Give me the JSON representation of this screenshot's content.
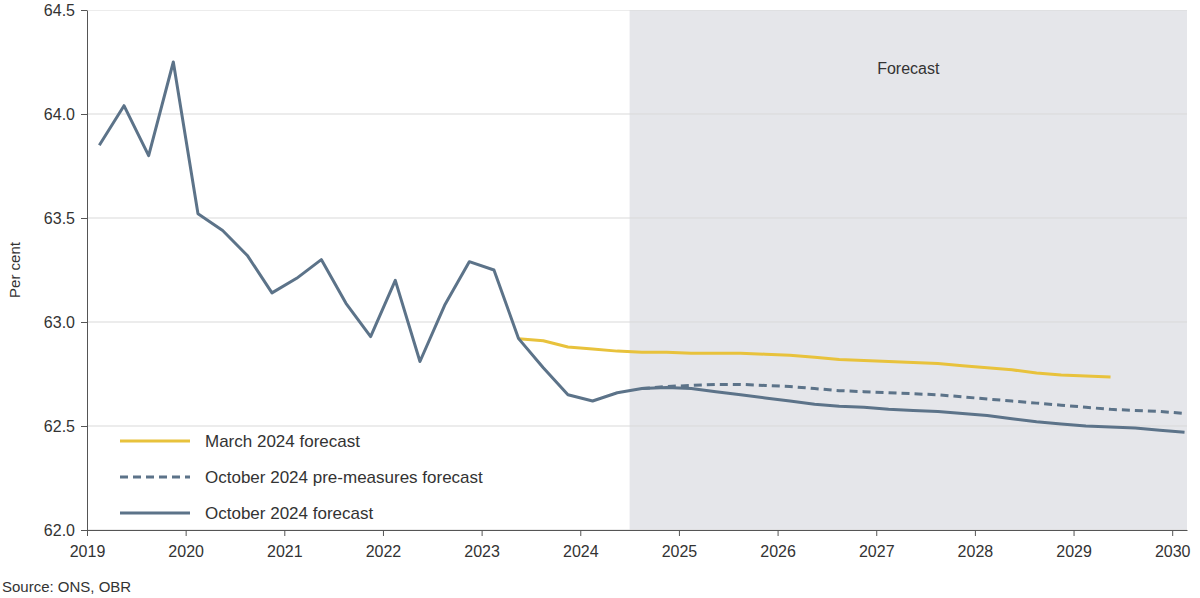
{
  "chart_data": {
    "type": "line",
    "y_label": "Per cent",
    "source": "Source: ONS, OBR",
    "x": [
      2019.125,
      2019.375,
      2019.625,
      2019.875,
      2020.125,
      2020.375,
      2020.625,
      2020.875,
      2021.125,
      2021.375,
      2021.625,
      2021.875,
      2022.125,
      2022.375,
      2022.625,
      2022.875,
      2023.125,
      2023.375,
      2023.625,
      2023.875,
      2024.125,
      2024.375,
      2024.625,
      2024.875,
      2025.125,
      2025.375,
      2025.625,
      2025.875,
      2026.125,
      2026.375,
      2026.625,
      2026.875,
      2027.125,
      2027.375,
      2027.625,
      2027.875,
      2028.125,
      2028.375,
      2028.625,
      2028.875,
      2029.125,
      2029.375,
      2029.625,
      2029.875,
      2030.125
    ],
    "series": [
      {
        "name": "March 2024 forecast",
        "color": "#e8c23c",
        "line_style": "solid",
        "values": [
          null,
          null,
          null,
          null,
          null,
          null,
          null,
          null,
          null,
          null,
          null,
          null,
          null,
          null,
          null,
          null,
          null,
          62.92,
          62.91,
          62.88,
          62.87,
          62.86,
          62.855,
          62.855,
          62.85,
          62.85,
          62.85,
          62.845,
          62.84,
          62.83,
          62.82,
          62.815,
          62.81,
          62.805,
          62.8,
          62.79,
          62.78,
          62.77,
          62.755,
          62.745,
          62.74,
          62.735,
          null,
          null,
          null
        ]
      },
      {
        "name": "October 2024 pre-measures forecast",
        "color": "#5c7389",
        "line_style": "dashed",
        "values": [
          null,
          null,
          null,
          null,
          null,
          null,
          null,
          null,
          null,
          null,
          null,
          null,
          null,
          null,
          null,
          null,
          null,
          null,
          null,
          null,
          null,
          null,
          62.68,
          62.69,
          62.695,
          62.7,
          62.7,
          62.695,
          62.69,
          62.68,
          62.67,
          62.665,
          62.66,
          62.655,
          62.65,
          62.64,
          62.63,
          62.62,
          62.61,
          62.6,
          62.59,
          62.58,
          62.575,
          62.57,
          62.56
        ]
      },
      {
        "name": "October 2024 forecast",
        "color": "#5c7389",
        "line_style": "solid",
        "values": [
          63.85,
          64.04,
          63.8,
          64.25,
          63.52,
          63.44,
          63.32,
          63.14,
          63.21,
          63.3,
          63.09,
          62.93,
          63.2,
          62.81,
          63.08,
          63.29,
          63.25,
          62.92,
          62.78,
          62.65,
          62.62,
          62.66,
          62.68,
          62.685,
          62.68,
          62.665,
          62.65,
          62.635,
          62.62,
          62.605,
          62.595,
          62.59,
          62.58,
          62.575,
          62.57,
          62.56,
          62.55,
          62.535,
          62.52,
          62.51,
          62.5,
          62.495,
          62.49,
          62.48,
          62.47
        ]
      }
    ],
    "xlim": [
      2019,
      2030.15
    ],
    "xticks": [
      2019,
      2020,
      2021,
      2022,
      2023,
      2024,
      2025,
      2026,
      2027,
      2028,
      2029,
      2030
    ],
    "ylim": [
      62.0,
      64.5
    ],
    "yticks": [
      {
        "value": 62.0,
        "label": "62.0"
      },
      62.5,
      {
        "value": 63.0,
        "label": "63.0"
      },
      63.5,
      {
        "value": 64.0,
        "label": "64.0"
      },
      64.5
    ],
    "annotations": [
      {
        "text": "Forecast",
        "x_start": 2024.5,
        "x_end": 2030.15
      }
    ],
    "grid": true,
    "legend": "lower left"
  }
}
